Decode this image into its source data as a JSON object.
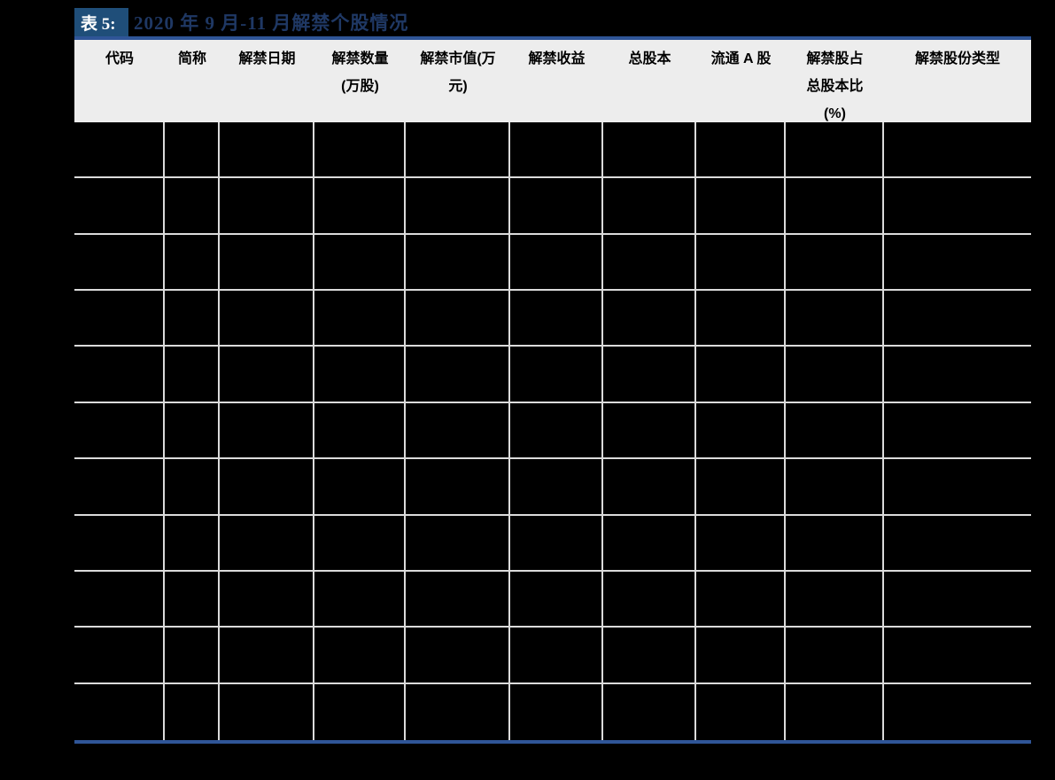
{
  "title": {
    "chip": "表 5:",
    "text": "2020 年 9 月-11 月解禁个股情况"
  },
  "colors": {
    "page_background": "#000000",
    "chip_background": "#1F4E79",
    "chip_text": "#FFFFFF",
    "title_text": "#1F3864",
    "rule_blue": "#2F5597",
    "header_background": "#EDEDED",
    "header_text": "#000000",
    "grid_line": "#DBDBDB"
  },
  "table": {
    "headers": [
      "代码",
      "简称",
      "解禁日期",
      "解禁数量\n(万股)",
      "解禁市值(万\n元)",
      "解禁收益",
      "总股本",
      "流通 A 股",
      "解禁股占\n总股本比\n(%)",
      "解禁股份类型"
    ],
    "rows": [
      [
        "",
        "",
        "",
        "",
        "",
        "",
        "",
        "",
        "",
        ""
      ],
      [
        "",
        "",
        "",
        "",
        "",
        "",
        "",
        "",
        "",
        ""
      ],
      [
        "",
        "",
        "",
        "",
        "",
        "",
        "",
        "",
        "",
        ""
      ],
      [
        "",
        "",
        "",
        "",
        "",
        "",
        "",
        "",
        "",
        ""
      ],
      [
        "",
        "",
        "",
        "",
        "",
        "",
        "",
        "",
        "",
        ""
      ],
      [
        "",
        "",
        "",
        "",
        "",
        "",
        "",
        "",
        "",
        ""
      ],
      [
        "",
        "",
        "",
        "",
        "",
        "",
        "",
        "",
        "",
        ""
      ],
      [
        "",
        "",
        "",
        "",
        "",
        "",
        "",
        "",
        "",
        ""
      ],
      [
        "",
        "",
        "",
        "",
        "",
        "",
        "",
        "",
        "",
        ""
      ],
      [
        "",
        "",
        "",
        "",
        "",
        "",
        "",
        "",
        "",
        ""
      ],
      [
        "",
        "",
        "",
        "",
        "",
        "",
        "",
        "",
        "",
        ""
      ]
    ]
  }
}
